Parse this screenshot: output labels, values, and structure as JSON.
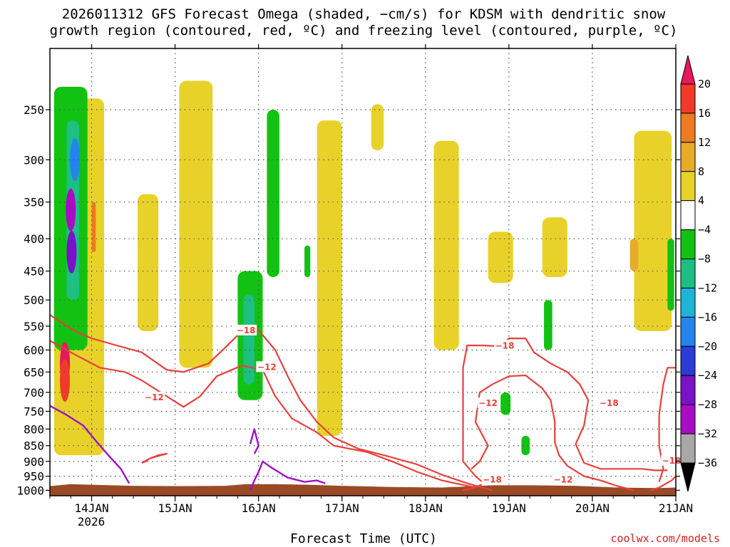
{
  "chart_data": {
    "type": "heatmap",
    "title": "2026011312 GFS Forecast Omega (shaded, −cm/s) for KDSM with dendritic snow growth region (contoured, red, ºC) and freezing level (contoured, purple, ºC)",
    "title_lines": [
      "2026011312 GFS Forecast Omega (shaded, −cm/s) for KDSM with dendritic snow",
      "growth region (contoured, red, ºC) and freezing level (contoured, purple, ºC)"
    ],
    "xlabel": "Forecast Time (UTC)",
    "x_ticks": [
      "14JAN",
      "15JAN",
      "16JAN",
      "17JAN",
      "18JAN",
      "19JAN",
      "20JAN",
      "21JAN"
    ],
    "x_year_label": "2026",
    "x_range_days": [
      13.5,
      21.0
    ],
    "y_ticks": [
      250,
      300,
      350,
      400,
      450,
      500,
      550,
      600,
      650,
      700,
      750,
      800,
      850,
      900,
      950,
      1000
    ],
    "y_range_hpa": [
      200,
      1020
    ],
    "y_scale": "log-pressure",
    "grid": true,
    "colorbar": {
      "labels": [
        "20",
        "16",
        "12",
        "8",
        "4",
        "−4",
        "−8",
        "−12",
        "−16",
        "−20",
        "−24",
        "−28",
        "−32",
        "−36"
      ],
      "colors": [
        "#e8185c",
        "#f03a2a",
        "#f07a20",
        "#e8ab2a",
        "#e8d22a",
        "#ffffff",
        "#12c212",
        "#1dbf82",
        "#1eb4d8",
        "#2384ef",
        "#2a3cd4",
        "#7a12c8",
        "#a80cc4",
        "#a8a8a8",
        "#000000"
      ]
    },
    "contour_labels": {
      "red": [
        "−18",
        "−12",
        "−12",
        "−18",
        "−12",
        "−18",
        "−18",
        "−18",
        "−12"
      ],
      "colors": {
        "dendritic": "#e8403c",
        "freezing": "#9a14c8",
        "terrain": "#9b4a26"
      }
    },
    "dendritic_contours": [
      {
        "level": -18,
        "points": [
          [
            13.5,
            528
          ],
          [
            13.8,
            560
          ],
          [
            14.0,
            575
          ],
          [
            14.3,
            590
          ],
          [
            14.6,
            605
          ],
          [
            14.9,
            645
          ],
          [
            15.1,
            650
          ],
          [
            15.4,
            630
          ],
          [
            15.6,
            595
          ],
          [
            15.8,
            560
          ],
          [
            16.0,
            558
          ],
          [
            16.2,
            600
          ],
          [
            16.35,
            660
          ],
          [
            16.5,
            720
          ],
          [
            16.7,
            780
          ],
          [
            16.9,
            825
          ],
          [
            17.2,
            860
          ],
          [
            17.5,
            880
          ],
          [
            17.9,
            910
          ],
          [
            18.2,
            945
          ],
          [
            18.5,
            975
          ],
          [
            18.8,
            1000
          ]
        ]
      },
      {
        "level": -12,
        "points": [
          [
            13.5,
            580
          ],
          [
            13.8,
            610
          ],
          [
            14.1,
            640
          ],
          [
            14.4,
            650
          ],
          [
            14.6,
            670
          ],
          [
            14.9,
            710
          ],
          [
            15.1,
            738
          ],
          [
            15.3,
            710
          ],
          [
            15.5,
            660
          ],
          [
            15.8,
            635
          ],
          [
            16.05,
            645
          ],
          [
            16.2,
            710
          ],
          [
            16.4,
            770
          ],
          [
            16.7,
            810
          ],
          [
            16.9,
            850
          ],
          [
            17.3,
            870
          ],
          [
            17.6,
            900
          ],
          [
            17.9,
            935
          ],
          [
            18.2,
            965
          ],
          [
            18.6,
            990
          ]
        ]
      },
      {
        "level": -18,
        "points": [
          [
            18.45,
            1000
          ],
          [
            18.6,
            990
          ],
          [
            18.7,
            975
          ],
          [
            18.6,
            950
          ],
          [
            18.45,
            900
          ],
          [
            18.45,
            800
          ],
          [
            18.45,
            720
          ],
          [
            18.45,
            640
          ],
          [
            18.5,
            590
          ],
          [
            18.7,
            590
          ],
          [
            18.9,
            592
          ],
          [
            19.0,
            575
          ],
          [
            19.2,
            575
          ],
          [
            19.3,
            605
          ],
          [
            19.5,
            630
          ],
          [
            19.7,
            650
          ],
          [
            19.85,
            680
          ],
          [
            19.95,
            720
          ],
          [
            19.9,
            790
          ],
          [
            19.8,
            845
          ],
          [
            19.9,
            905
          ],
          [
            20.1,
            925
          ],
          [
            20.3,
            925
          ],
          [
            20.6,
            925
          ],
          [
            20.75,
            930
          ],
          [
            20.9,
            930
          ]
        ]
      },
      {
        "level": -12,
        "points": [
          [
            18.55,
            925
          ],
          [
            18.65,
            900
          ],
          [
            18.75,
            850
          ],
          [
            18.6,
            780
          ],
          [
            18.65,
            700
          ],
          [
            18.8,
            680
          ],
          [
            19.0,
            660
          ],
          [
            19.2,
            658
          ],
          [
            19.4,
            690
          ],
          [
            19.5,
            720
          ],
          [
            19.55,
            780
          ],
          [
            19.55,
            840
          ],
          [
            19.6,
            880
          ],
          [
            19.7,
            915
          ],
          [
            19.9,
            950
          ],
          [
            20.1,
            965
          ],
          [
            20.3,
            985
          ],
          [
            20.5,
            1000
          ]
        ]
      },
      {
        "level": -18,
        "points": [
          [
            20.7,
            1000
          ],
          [
            20.8,
            990
          ],
          [
            20.95,
            965
          ],
          [
            21.0,
            950
          ]
        ]
      },
      {
        "level": -18,
        "points": [
          [
            21.0,
            640
          ],
          [
            20.9,
            640
          ],
          [
            20.85,
            680
          ],
          [
            20.8,
            760
          ],
          [
            20.8,
            850
          ],
          [
            20.85,
            925
          ],
          [
            20.8,
            970
          ]
        ]
      },
      {
        "level": -12,
        "points": [
          [
            14.6,
            905
          ],
          [
            14.7,
            890
          ],
          [
            14.8,
            880
          ],
          [
            14.9,
            875
          ],
          [
            14.7,
            890
          ],
          [
            14.65,
            900
          ],
          [
            14.6,
            905
          ]
        ]
      }
    ],
    "freezing_contours": [
      {
        "level": 0,
        "points": [
          [
            13.5,
            735
          ],
          [
            13.7,
            760
          ],
          [
            13.9,
            790
          ],
          [
            14.05,
            835
          ],
          [
            14.2,
            880
          ],
          [
            14.35,
            925
          ],
          [
            14.45,
            975
          ]
        ]
      },
      {
        "level": 0,
        "points": [
          [
            15.9,
            1000
          ],
          [
            15.95,
            965
          ],
          [
            16.0,
            935
          ],
          [
            16.05,
            900
          ],
          [
            16.15,
            920
          ],
          [
            16.35,
            955
          ],
          [
            16.55,
            970
          ],
          [
            16.7,
            965
          ],
          [
            16.8,
            975
          ]
        ]
      },
      {
        "level": 0,
        "points": [
          [
            15.9,
            845
          ],
          [
            15.95,
            800
          ],
          [
            16.0,
            850
          ],
          [
            15.95,
            875
          ]
        ]
      }
    ],
    "omega_regions": [
      {
        "bin": "4",
        "x": [
          13.55,
          14.15
        ],
        "p": [
          240,
          880
        ]
      },
      {
        "bin": "4",
        "x": [
          14.55,
          14.8
        ],
        "p": [
          340,
          560
        ]
      },
      {
        "bin": "4",
        "x": [
          15.05,
          15.45
        ],
        "p": [
          225,
          640
        ]
      },
      {
        "bin": "4",
        "x": [
          16.7,
          17.0
        ],
        "p": [
          260,
          820
        ]
      },
      {
        "bin": "4",
        "x": [
          17.35,
          17.5
        ],
        "p": [
          245,
          290
        ]
      },
      {
        "bin": "4",
        "x": [
          18.1,
          18.4
        ],
        "p": [
          280,
          600
        ]
      },
      {
        "bin": "4",
        "x": [
          18.75,
          19.05
        ],
        "p": [
          390,
          470
        ]
      },
      {
        "bin": "4",
        "x": [
          19.4,
          19.7
        ],
        "p": [
          370,
          460
        ]
      },
      {
        "bin": "4",
        "x": [
          20.5,
          20.95
        ],
        "p": [
          270,
          560
        ]
      },
      {
        "bin": "8",
        "x": [
          20.45,
          20.55
        ],
        "p": [
          400,
          450
        ]
      },
      {
        "bin": "8",
        "x": [
          13.55,
          13.75
        ],
        "p": [
          440,
          600
        ]
      },
      {
        "bin": "12",
        "x": [
          14.0,
          14.05
        ],
        "p": [
          350,
          420
        ]
      },
      {
        "bin": "−4",
        "x": [
          13.55,
          13.95
        ],
        "p": [
          230,
          600
        ]
      },
      {
        "bin": "−8",
        "x": [
          13.7,
          13.85
        ],
        "p": [
          260,
          500
        ]
      },
      {
        "bin": "−4",
        "x": [
          15.75,
          16.05
        ],
        "p": [
          450,
          720
        ]
      },
      {
        "bin": "−8",
        "x": [
          15.82,
          15.95
        ],
        "p": [
          490,
          680
        ]
      },
      {
        "bin": "−4",
        "x": [
          16.1,
          16.25
        ],
        "p": [
          250,
          460
        ]
      },
      {
        "bin": "−4",
        "x": [
          16.55,
          16.62
        ],
        "p": [
          410,
          460
        ]
      },
      {
        "bin": "−4",
        "x": [
          18.9,
          19.02
        ],
        "p": [
          700,
          760
        ]
      },
      {
        "bin": "−4",
        "x": [
          19.15,
          19.25
        ],
        "p": [
          820,
          880
        ]
      },
      {
        "bin": "−4",
        "x": [
          19.42,
          19.52
        ],
        "p": [
          500,
          600
        ]
      },
      {
        "bin": "−4",
        "x": [
          20.9,
          20.98
        ],
        "p": [
          400,
          520
        ]
      }
    ],
    "omega_peaks": [
      {
        "bin": "20",
        "x": 13.68,
        "p": 630,
        "note": "strong ascent core near 600–700 hPa"
      },
      {
        "bin": "16",
        "x": 13.68,
        "p": 670
      },
      {
        "bin": "−28",
        "x": 13.75,
        "p": 360
      },
      {
        "bin": "−24",
        "x": 13.76,
        "p": 420
      },
      {
        "bin": "−16",
        "x": 13.8,
        "p": 300
      }
    ]
  },
  "footer": {
    "credit": "coolwx.com/models"
  }
}
